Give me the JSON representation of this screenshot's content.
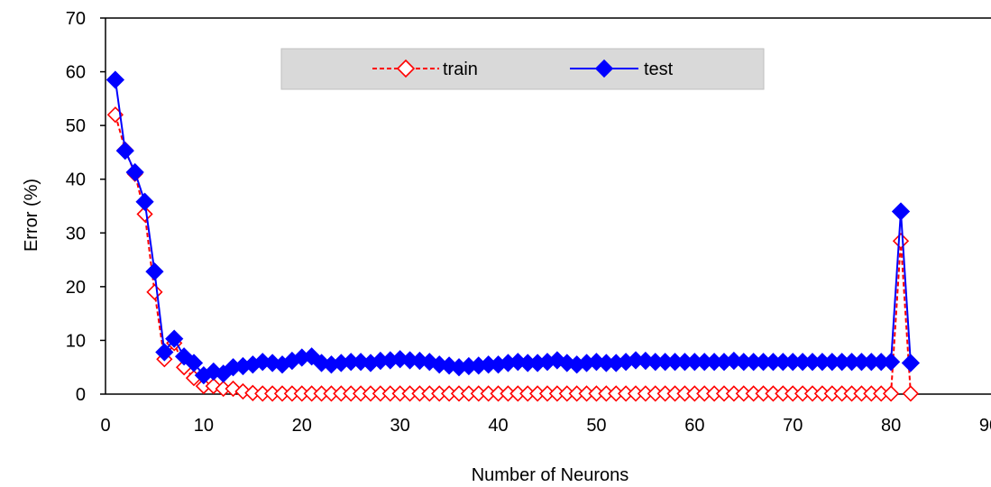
{
  "chart_data": {
    "type": "line",
    "xlabel": "Number of  Neurons",
    "ylabel": "Error  (%)",
    "xlim": [
      0,
      90
    ],
    "ylim": [
      0,
      70
    ],
    "xticks": [
      0,
      10,
      20,
      30,
      40,
      50,
      60,
      70,
      80,
      90
    ],
    "xtick_labels": [
      "0",
      "10",
      "20",
      "30",
      "40",
      "50",
      "60",
      "70",
      "80",
      "90"
    ],
    "yticks": [
      0,
      10,
      20,
      30,
      40,
      50,
      60,
      70
    ],
    "ytick_labels": [
      "0",
      "10",
      "20",
      "30",
      "40",
      "50",
      "60",
      "70"
    ],
    "grid": false,
    "legend_position": "top-center",
    "x": [
      1,
      2,
      3,
      4,
      5,
      6,
      7,
      8,
      9,
      10,
      11,
      12,
      13,
      14,
      15,
      16,
      17,
      18,
      19,
      20,
      21,
      22,
      23,
      24,
      25,
      26,
      27,
      28,
      29,
      30,
      31,
      32,
      33,
      34,
      35,
      36,
      37,
      38,
      39,
      40,
      41,
      42,
      43,
      44,
      45,
      46,
      47,
      48,
      49,
      50,
      51,
      52,
      53,
      54,
      55,
      56,
      57,
      58,
      59,
      60,
      61,
      62,
      63,
      64,
      65,
      66,
      67,
      68,
      69,
      70,
      71,
      72,
      73,
      74,
      75,
      76,
      77,
      78,
      79,
      80,
      81,
      82
    ],
    "series": [
      {
        "name": "train",
        "color": "#ff0000",
        "line_style": "dashed",
        "marker": "open-diamond",
        "values": [
          52.0,
          45.5,
          41.0,
          33.5,
          19.0,
          6.5,
          9.5,
          5.0,
          3.0,
          1.5,
          1.5,
          1.0,
          1.0,
          0.5,
          0.2,
          0.1,
          0.1,
          0.1,
          0.1,
          0.1,
          0.1,
          0.1,
          0.1,
          0.1,
          0.1,
          0.1,
          0.1,
          0.1,
          0.1,
          0.1,
          0.1,
          0.1,
          0.1,
          0.1,
          0.1,
          0.1,
          0.1,
          0.1,
          0.1,
          0.1,
          0.1,
          0.1,
          0.1,
          0.1,
          0.1,
          0.1,
          0.1,
          0.1,
          0.1,
          0.1,
          0.1,
          0.1,
          0.1,
          0.1,
          0.1,
          0.1,
          0.1,
          0.1,
          0.1,
          0.1,
          0.1,
          0.1,
          0.1,
          0.1,
          0.1,
          0.1,
          0.1,
          0.1,
          0.1,
          0.1,
          0.1,
          0.1,
          0.1,
          0.1,
          0.1,
          0.1,
          0.1,
          0.1,
          0.1,
          0.1,
          28.5,
          0.1
        ]
      },
      {
        "name": "test",
        "color": "#0000ff",
        "line_style": "solid",
        "marker": "filled-diamond",
        "values": [
          58.5,
          45.3,
          41.3,
          35.8,
          22.8,
          7.8,
          10.3,
          7.0,
          5.8,
          3.5,
          4.2,
          3.8,
          5.0,
          5.2,
          5.5,
          6.0,
          5.8,
          5.5,
          6.2,
          6.8,
          7.0,
          5.8,
          5.5,
          5.8,
          6.0,
          6.0,
          5.8,
          6.2,
          6.3,
          6.5,
          6.3,
          6.2,
          6.0,
          5.5,
          5.3,
          5.0,
          5.2,
          5.3,
          5.5,
          5.5,
          5.8,
          6.0,
          5.8,
          5.8,
          6.0,
          6.3,
          5.8,
          5.5,
          5.8,
          6.0,
          5.8,
          5.8,
          6.0,
          6.3,
          6.2,
          6.0,
          6.0,
          6.0,
          6.0,
          6.0,
          6.0,
          6.0,
          6.0,
          6.2,
          6.0,
          6.0,
          6.0,
          6.0,
          6.0,
          6.0,
          6.0,
          6.0,
          6.0,
          6.0,
          6.0,
          6.0,
          6.0,
          6.0,
          6.0,
          6.0,
          34.0,
          5.8
        ]
      }
    ]
  }
}
